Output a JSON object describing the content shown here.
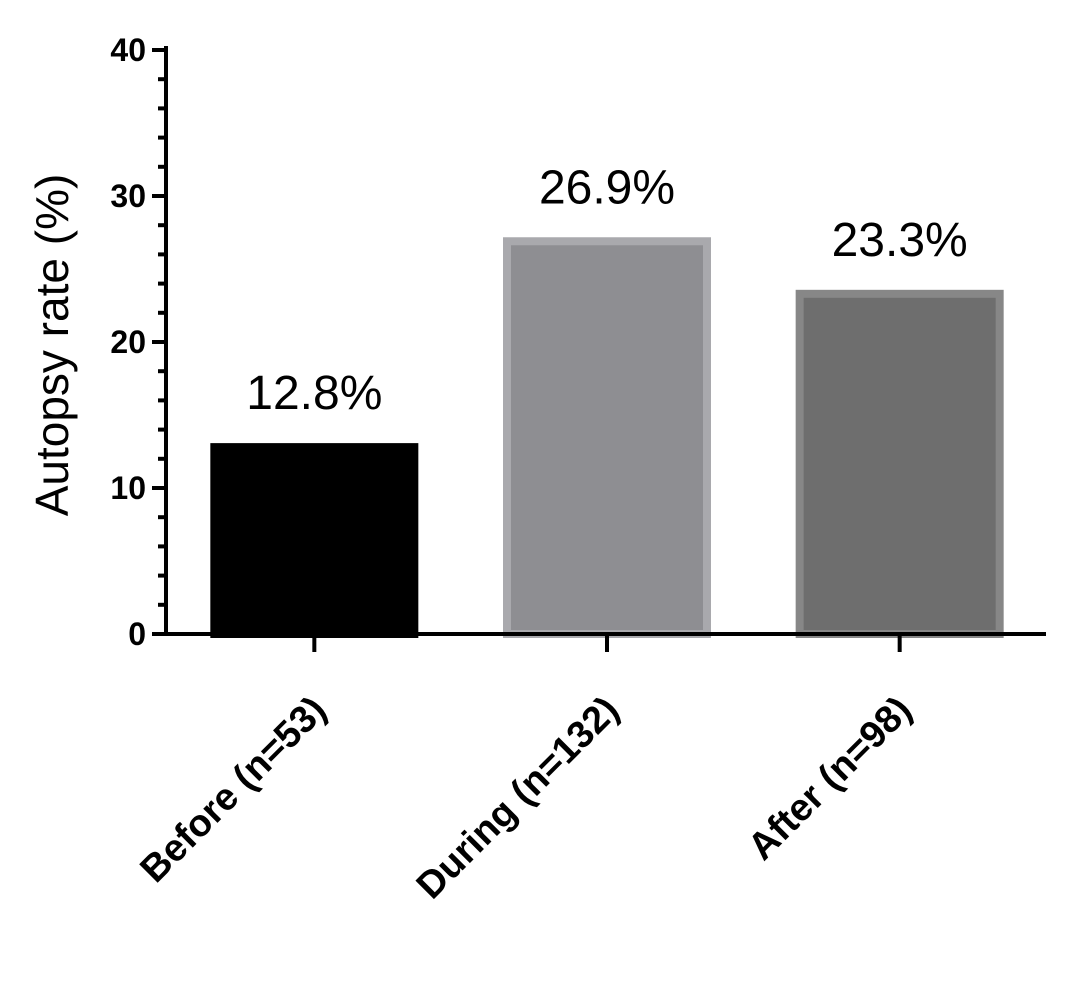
{
  "chart_data": {
    "type": "bar",
    "categories": [
      "Before (n=53)",
      "During (n=132)",
      "After (n=98)"
    ],
    "values": [
      12.8,
      26.9,
      23.3
    ],
    "data_labels": [
      "12.8%",
      "26.9%",
      "23.3%"
    ],
    "ylabel": "Autopsy rate (%)",
    "xlabel": "",
    "ylim": [
      0,
      40
    ],
    "yticks": [
      0,
      10,
      20,
      30,
      40
    ],
    "grid": false,
    "colors": {
      "fills": [
        "#000000",
        "#8e8e92",
        "#6e6e6e"
      ],
      "borders": [
        "#000000",
        "#a9a9ad",
        "#878787"
      ]
    }
  }
}
